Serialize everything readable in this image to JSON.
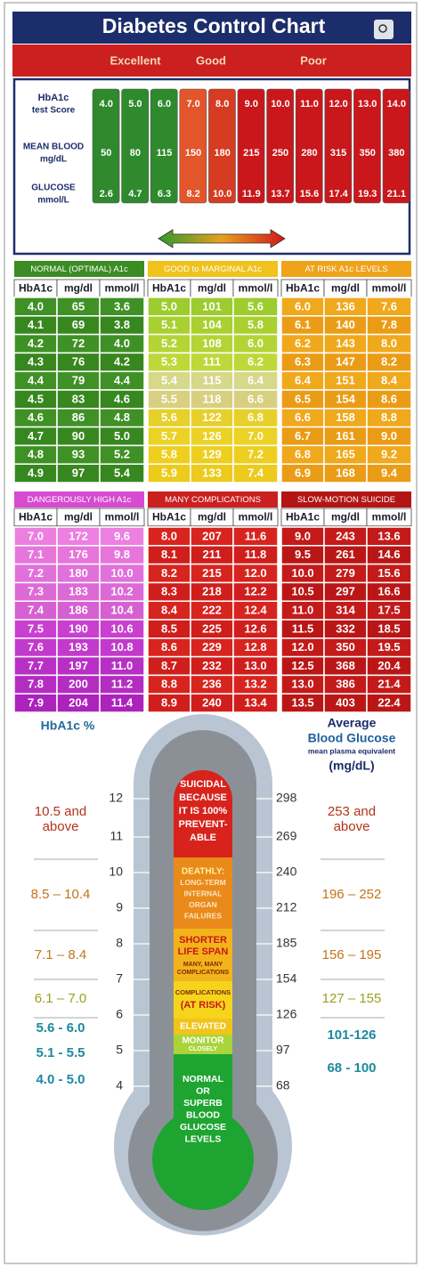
{
  "header": {
    "title": "Diabetes Control Chart",
    "ratings": [
      "Excellent",
      "Good",
      "Poor"
    ]
  },
  "summary": {
    "row_labels": [
      [
        "HbA1c",
        "test Score"
      ],
      [
        "MEAN BLOOD",
        "mg/dL"
      ],
      [
        "GLUCOSE",
        "mmol/L"
      ]
    ],
    "hba1c": [
      "4.0",
      "5.0",
      "6.0",
      "7.0",
      "8.0",
      "9.0",
      "10.0",
      "11.0",
      "12.0",
      "13.0",
      "14.0"
    ],
    "mean_blood": [
      "50",
      "80",
      "115",
      "150",
      "180",
      "215",
      "250",
      "280",
      "315",
      "350",
      "380"
    ],
    "glucose": [
      "2.6",
      "4.7",
      "6.3",
      "8.2",
      "10.0",
      "11.9",
      "13.7",
      "15.6",
      "17.4",
      "19.3",
      "21.1"
    ]
  },
  "tables": [
    {
      "title": "NORMAL (OPTIMAL) A1c",
      "headers": [
        "HbA1c",
        "mg/dl",
        "mmol/l"
      ],
      "rows": [
        [
          "4.0",
          "65",
          "3.6"
        ],
        [
          "4.1",
          "69",
          "3.8"
        ],
        [
          "4.2",
          "72",
          "4.0"
        ],
        [
          "4.3",
          "76",
          "4.2"
        ],
        [
          "4.4",
          "79",
          "4.4"
        ],
        [
          "4.5",
          "83",
          "4.6"
        ],
        [
          "4.6",
          "86",
          "4.8"
        ],
        [
          "4.7",
          "90",
          "5.0"
        ],
        [
          "4.8",
          "93",
          "5.2"
        ],
        [
          "4.9",
          "97",
          "5.4"
        ]
      ]
    },
    {
      "title": "GOOD to MARGINAL A1c",
      "headers": [
        "HbA1c",
        "mg/dl",
        "mmol/l"
      ],
      "rows": [
        [
          "5.0",
          "101",
          "5.6"
        ],
        [
          "5.1",
          "104",
          "5.8"
        ],
        [
          "5.2",
          "108",
          "6.0"
        ],
        [
          "5.3",
          "111",
          "6.2"
        ],
        [
          "5.4",
          "115",
          "6.4"
        ],
        [
          "5.5",
          "118",
          "6.6"
        ],
        [
          "5.6",
          "122",
          "6.8"
        ],
        [
          "5.7",
          "126",
          "7.0"
        ],
        [
          "5.8",
          "129",
          "7.2"
        ],
        [
          "5.9",
          "133",
          "7.4"
        ]
      ]
    },
    {
      "title": "AT RISK A1c LEVELS",
      "headers": [
        "HbA1c",
        "mg/dl",
        "mmol/l"
      ],
      "rows": [
        [
          "6.0",
          "136",
          "7.6"
        ],
        [
          "6.1",
          "140",
          "7.8"
        ],
        [
          "6.2",
          "143",
          "8.0"
        ],
        [
          "6.3",
          "147",
          "8.2"
        ],
        [
          "6.4",
          "151",
          "8.4"
        ],
        [
          "6.5",
          "154",
          "8.6"
        ],
        [
          "6.6",
          "158",
          "8.8"
        ],
        [
          "6.7",
          "161",
          "9.0"
        ],
        [
          "6.8",
          "165",
          "9.2"
        ],
        [
          "6.9",
          "168",
          "9.4"
        ]
      ]
    },
    {
      "title": "DANGEROUSLY HIGH A1c",
      "headers": [
        "HbA1c",
        "mg/dl",
        "mmol/l"
      ],
      "rows": [
        [
          "7.0",
          "172",
          "9.6"
        ],
        [
          "7.1",
          "176",
          "9.8"
        ],
        [
          "7.2",
          "180",
          "10.0"
        ],
        [
          "7.3",
          "183",
          "10.2"
        ],
        [
          "7.4",
          "186",
          "10.4"
        ],
        [
          "7.5",
          "190",
          "10.6"
        ],
        [
          "7.6",
          "193",
          "10.8"
        ],
        [
          "7.7",
          "197",
          "11.0"
        ],
        [
          "7.8",
          "200",
          "11.2"
        ],
        [
          "7.9",
          "204",
          "11.4"
        ]
      ]
    },
    {
      "title": "MANY COMPLICATIONS",
      "headers": [
        "HbA1c",
        "mg/dl",
        "mmol/l"
      ],
      "rows": [
        [
          "8.0",
          "207",
          "11.6"
        ],
        [
          "8.1",
          "211",
          "11.8"
        ],
        [
          "8.2",
          "215",
          "12.0"
        ],
        [
          "8.3",
          "218",
          "12.2"
        ],
        [
          "8.4",
          "222",
          "12.4"
        ],
        [
          "8.5",
          "225",
          "12.6"
        ],
        [
          "8.6",
          "229",
          "12.8"
        ],
        [
          "8.7",
          "232",
          "13.0"
        ],
        [
          "8.8",
          "236",
          "13.2"
        ],
        [
          "8.9",
          "240",
          "13.4"
        ]
      ]
    },
    {
      "title": "SLOW-MOTION SUICIDE",
      "headers": [
        "HbA1c",
        "mg/dl",
        "mmol/l"
      ],
      "rows": [
        [
          "9.0",
          "243",
          "13.6"
        ],
        [
          "9.5",
          "261",
          "14.6"
        ],
        [
          "10.0",
          "279",
          "15.6"
        ],
        [
          "10.5",
          "297",
          "16.6"
        ],
        [
          "11.0",
          "314",
          "17.5"
        ],
        [
          "11.5",
          "332",
          "18.5"
        ],
        [
          "12.0",
          "350",
          "19.5"
        ],
        [
          "12.5",
          "368",
          "20.4"
        ],
        [
          "13.0",
          "386",
          "21.4"
        ],
        [
          "13.5",
          "403",
          "22.4"
        ]
      ]
    }
  ],
  "thermometer": {
    "left_title": "HbA1c %",
    "right_title": "Average",
    "right_title2": "Blood Glucose",
    "right_subtitle": "mean plasma equivalent",
    "right_unit": "(mg/dL)",
    "left_ranges": [
      [
        "10.5 and",
        "above"
      ],
      [
        "8.5 – 10.4"
      ],
      [
        "7.1 – 8.4"
      ],
      [
        "6.1 – 7.0"
      ],
      [
        "5.6 - 6.0"
      ],
      [
        "5.1 - 5.5"
      ],
      [
        "4.0 - 5.0"
      ]
    ],
    "right_ranges": [
      [
        "253 and",
        "above"
      ],
      [
        "196 – 252"
      ],
      [
        "156 – 195"
      ],
      [
        "127 – 155"
      ],
      [
        "101-126"
      ],
      [
        "68 - 100"
      ]
    ],
    "scale_left": [
      "12",
      "11",
      "10",
      "9",
      "8",
      "7",
      "6",
      "5",
      "4"
    ],
    "scale_right": [
      "298",
      "269",
      "240",
      "212",
      "185",
      "154",
      "126",
      "97",
      "68"
    ],
    "zones": [
      [
        "SUICIDAL",
        "BECAUSE",
        "IT IS 100%",
        "PREVENT-",
        "ABLE"
      ],
      [
        "DEATHLY:",
        "LONG-TERM",
        "INTERNAL",
        "ORGAN",
        "FAILURES"
      ],
      [
        "SHORTER",
        "LIFE SPAN",
        "MANY, MANY",
        "COMPLICATIONS"
      ],
      [
        "COMPLICATIONS",
        "(AT RISK)"
      ],
      [
        "ELEVATED"
      ],
      [
        "MONITOR",
        "CLOSELY"
      ],
      [
        "NORMAL",
        "OR",
        "SUPERB",
        "BLOOD",
        "GLUCOSE",
        "LEVELS"
      ]
    ]
  }
}
